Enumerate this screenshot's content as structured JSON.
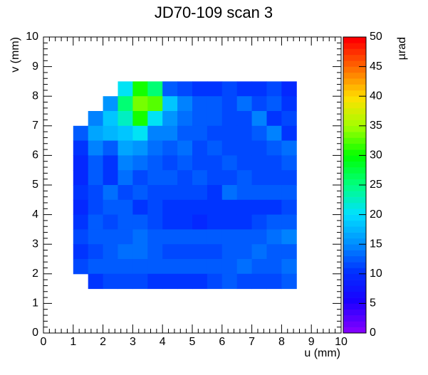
{
  "chart_data": {
    "type": "heatmap",
    "title": "JD70-109 scan 3",
    "x_label": "u (mm)",
    "y_label": "v (mm)",
    "z_label": "µrad",
    "xlim": [
      0,
      10
    ],
    "ylim": [
      0,
      10
    ],
    "zlim": [
      0,
      50
    ],
    "xticks": [
      0,
      1,
      2,
      3,
      4,
      5,
      6,
      7,
      8,
      9,
      10
    ],
    "yticks": [
      0,
      1,
      2,
      3,
      4,
      5,
      6,
      7,
      8,
      9,
      10
    ],
    "zticks": [
      0,
      5,
      10,
      15,
      20,
      25,
      30,
      35,
      40,
      45,
      50
    ],
    "colorscale": [
      "#8000ff",
      "#1a00ff",
      "#0030ff",
      "#0090ff",
      "#00e0ff",
      "#00ff80",
      "#00ff00",
      "#a0ff00",
      "#ffe000",
      "#ff7000",
      "#ff0000"
    ],
    "x": [
      1.25,
      1.75,
      2.25,
      2.75,
      3.25,
      3.75,
      4.25,
      4.75,
      5.25,
      5.75,
      6.25,
      6.75,
      7.25,
      7.75,
      8.25
    ],
    "y": [
      8.25,
      7.75,
      7.25,
      6.75,
      6.25,
      5.75,
      5.25,
      4.75,
      4.25,
      3.75,
      3.25,
      2.75,
      2.25,
      1.75
    ],
    "z": [
      [
        null,
        null,
        null,
        20,
        30,
        25,
        12,
        11,
        10,
        10,
        11,
        10,
        10,
        11,
        9
      ],
      [
        null,
        null,
        15,
        25,
        33,
        32,
        18,
        14,
        12,
        12,
        11,
        13,
        11,
        12,
        10
      ],
      [
        null,
        14,
        18,
        22,
        30,
        20,
        15,
        13,
        12,
        12,
        11,
        11,
        14,
        10,
        11
      ],
      [
        12,
        16,
        17,
        18,
        20,
        14,
        14,
        12,
        12,
        11,
        11,
        11,
        12,
        14,
        10
      ],
      [
        10,
        14,
        12,
        16,
        15,
        13,
        12,
        13,
        11,
        12,
        11,
        11,
        11,
        12,
        13
      ],
      [
        9,
        12,
        10,
        14,
        13,
        12,
        11,
        12,
        11,
        11,
        12,
        11,
        11,
        11,
        12
      ],
      [
        9,
        12,
        10,
        13,
        11,
        12,
        12,
        11,
        12,
        11,
        11,
        12,
        11,
        11,
        11
      ],
      [
        10,
        11,
        13,
        11,
        12,
        11,
        11,
        11,
        11,
        10,
        13,
        12,
        12,
        12,
        12
      ],
      [
        9,
        11,
        12,
        12,
        10,
        11,
        10,
        10,
        10,
        10,
        10,
        10,
        10,
        10,
        11
      ],
      [
        10,
        12,
        11,
        12,
        12,
        11,
        10,
        10,
        9,
        10,
        10,
        10,
        11,
        12,
        12
      ],
      [
        11,
        12,
        12,
        12,
        13,
        12,
        12,
        12,
        12,
        12,
        12,
        12,
        12,
        13,
        14
      ],
      [
        10,
        11,
        12,
        13,
        13,
        12,
        11,
        11,
        11,
        11,
        12,
        12,
        13,
        12,
        12
      ],
      [
        11,
        12,
        12,
        12,
        12,
        12,
        12,
        12,
        12,
        12,
        12,
        13,
        12,
        12,
        13
      ],
      [
        null,
        10,
        11,
        11,
        11,
        10,
        10,
        10,
        10,
        11,
        12,
        11,
        11,
        11,
        12
      ]
    ]
  }
}
